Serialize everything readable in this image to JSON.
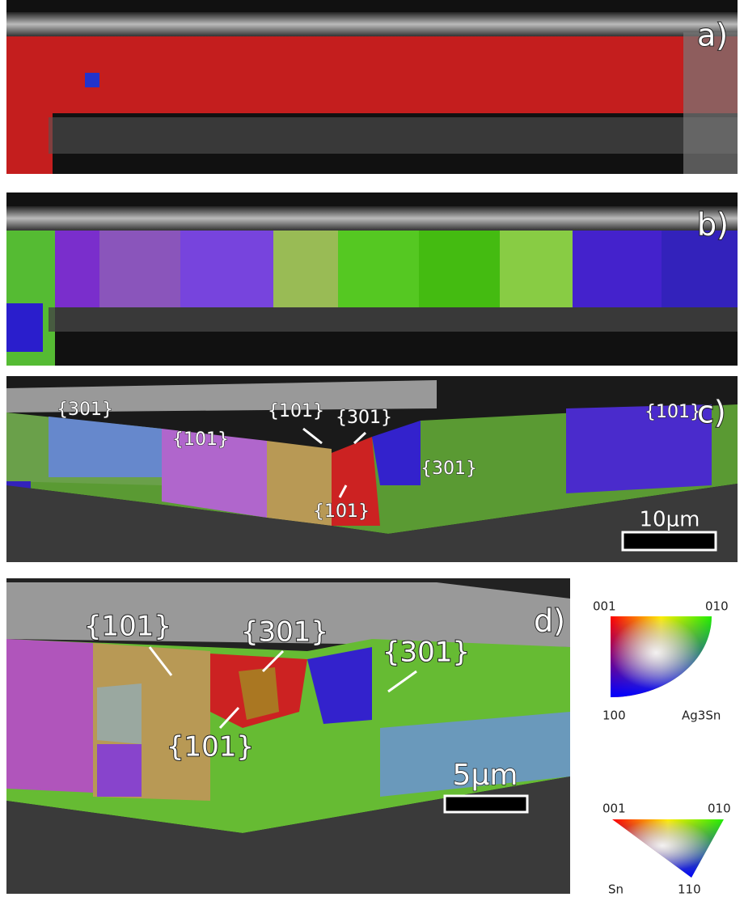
{
  "panels": [
    {
      "label": "a)"
    },
    {
      "label": "b)"
    },
    {
      "label": "c)",
      "annotations": [
        "{301}",
        "{101}",
        "{101}",
        "{301}",
        "{101}",
        "{301}",
        "{101}"
      ],
      "scale_bar": "10μm"
    },
    {
      "label": "d)",
      "annotations": [
        "{101}",
        "{301}",
        "{301}",
        "{101}"
      ],
      "scale_bar": "5μm"
    }
  ],
  "legends": [
    {
      "corners": [
        "001",
        "010",
        "100"
      ],
      "name": "Ag3Sn"
    },
    {
      "corners": [
        "001",
        "010",
        "110"
      ],
      "name": "Sn"
    }
  ]
}
